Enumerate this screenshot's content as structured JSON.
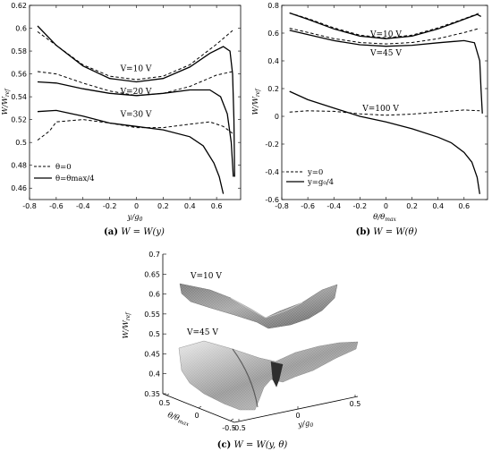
{
  "chart_data": [
    {
      "id": "a",
      "type": "line",
      "caption_letter": "(a)",
      "caption_text": "W = W(y)",
      "xlabel": "y/g₀",
      "ylabel": "W/W_ref",
      "xlim": [
        -0.8,
        0.78
      ],
      "ylim": [
        0.45,
        0.62
      ],
      "xticks": [
        "-0.8",
        "-0.6",
        "-0.4",
        "-0.2",
        "0",
        "0.2",
        "0.4",
        "0.6"
      ],
      "xtick_values": [
        -0.8,
        -0.6,
        -0.4,
        -0.2,
        0,
        0.2,
        0.4,
        0.6
      ],
      "yticks": [
        "0.46",
        "0.48",
        "0.5",
        "0.52",
        "0.54",
        "0.56",
        "0.58",
        "0.6",
        "0.62"
      ],
      "ytick_values": [
        0.46,
        0.48,
        0.5,
        0.52,
        0.54,
        0.56,
        0.58,
        0.6,
        0.62
      ],
      "legend": {
        "placement": "bottom-left",
        "entries": [
          {
            "label": "θ=0",
            "style": "dashed"
          },
          {
            "label": "θ=θmax/4",
            "style": "solid"
          }
        ]
      },
      "annotations": [
        {
          "text": "V=10 V",
          "x": -0.12,
          "y": 0.5625
        },
        {
          "text": "V=20 V",
          "x": -0.12,
          "y": 0.5425
        },
        {
          "text": "V=30 V",
          "x": -0.12,
          "y": 0.5225
        }
      ],
      "series": [
        {
          "style": "dashed",
          "x": [
            -0.74,
            -0.6,
            -0.4,
            -0.2,
            0,
            0.2,
            0.4,
            0.6,
            0.72
          ],
          "y": [
            0.597,
            0.585,
            0.568,
            0.558,
            0.555,
            0.558,
            0.568,
            0.586,
            0.598
          ]
        },
        {
          "style": "solid",
          "x": [
            -0.74,
            -0.6,
            -0.4,
            -0.2,
            0,
            0.2,
            0.4,
            0.55,
            0.65,
            0.7,
            0.72,
            0.73,
            0.735
          ],
          "y": [
            0.602,
            0.585,
            0.567,
            0.556,
            0.553,
            0.556,
            0.566,
            0.578,
            0.584,
            0.58,
            0.56,
            0.52,
            0.47
          ]
        },
        {
          "style": "dashed",
          "x": [
            -0.74,
            -0.6,
            -0.4,
            -0.2,
            0,
            0.2,
            0.4,
            0.6,
            0.72
          ],
          "y": [
            0.562,
            0.56,
            0.552,
            0.545,
            0.541,
            0.543,
            0.549,
            0.559,
            0.562
          ]
        },
        {
          "style": "solid",
          "x": [
            -0.74,
            -0.6,
            -0.4,
            -0.2,
            0,
            0.2,
            0.4,
            0.55,
            0.63,
            0.68,
            0.71,
            0.725
          ],
          "y": [
            0.553,
            0.552,
            0.547,
            0.543,
            0.541,
            0.543,
            0.546,
            0.546,
            0.54,
            0.525,
            0.5,
            0.47
          ]
        },
        {
          "style": "dashed",
          "x": [
            -0.74,
            -0.65,
            -0.6,
            -0.4,
            -0.2,
            0,
            0.2,
            0.4,
            0.55,
            0.65,
            0.72
          ],
          "y": [
            0.502,
            0.51,
            0.518,
            0.52,
            0.517,
            0.513,
            0.513,
            0.516,
            0.518,
            0.514,
            0.508
          ]
        },
        {
          "style": "solid",
          "x": [
            -0.74,
            -0.6,
            -0.4,
            -0.2,
            0,
            0.2,
            0.4,
            0.5,
            0.58,
            0.62,
            0.65
          ],
          "y": [
            0.527,
            0.528,
            0.523,
            0.517,
            0.514,
            0.511,
            0.505,
            0.497,
            0.482,
            0.47,
            0.455
          ]
        }
      ]
    },
    {
      "id": "b",
      "type": "line",
      "caption_letter": "(b)",
      "caption_text": "W = W(θ)",
      "xlabel": "θ/θmax",
      "ylabel": "W/W_ref",
      "xlim": [
        -0.8,
        0.78
      ],
      "ylim": [
        -0.6,
        0.8
      ],
      "xticks": [
        "-0.8",
        "-0.6",
        "-0.4",
        "-0.2",
        "0",
        "0.2",
        "0.4",
        "0.6"
      ],
      "xtick_values": [
        -0.8,
        -0.6,
        -0.4,
        -0.2,
        0,
        0.2,
        0.4,
        0.6
      ],
      "yticks": [
        "-0.6",
        "-0.4",
        "-0.2",
        "0",
        "0.2",
        "0.4",
        "0.6",
        "0.8"
      ],
      "ytick_values": [
        -0.6,
        -0.4,
        -0.2,
        0,
        0.2,
        0.4,
        0.6,
        0.8
      ],
      "legend": {
        "placement": "bottom-left",
        "entries": [
          {
            "label": "y=0",
            "style": "dashed"
          },
          {
            "label": "y=g₀/4",
            "style": "solid"
          }
        ]
      },
      "annotations": [
        {
          "text": "V=10 V",
          "x": -0.12,
          "y": 0.575
        },
        {
          "text": "V=45 V",
          "x": -0.12,
          "y": 0.44
        },
        {
          "text": "V=100 V",
          "x": -0.18,
          "y": 0.04
        }
      ],
      "series": [
        {
          "style": "dashed",
          "x": [
            -0.74,
            -0.6,
            -0.4,
            -0.2,
            0,
            0.2,
            0.4,
            0.6,
            0.72
          ],
          "y": [
            0.745,
            0.705,
            0.638,
            0.585,
            0.565,
            0.585,
            0.638,
            0.703,
            0.745
          ]
        },
        {
          "style": "solid",
          "x": [
            -0.74,
            -0.6,
            -0.4,
            -0.2,
            0,
            0.2,
            0.4,
            0.6,
            0.7,
            0.73
          ],
          "y": [
            0.745,
            0.7,
            0.63,
            0.578,
            0.56,
            0.578,
            0.63,
            0.7,
            0.735,
            0.72
          ]
        },
        {
          "style": "dashed",
          "x": [
            -0.74,
            -0.6,
            -0.4,
            -0.2,
            0,
            0.2,
            0.4,
            0.6,
            0.72
          ],
          "y": [
            0.635,
            0.605,
            0.56,
            0.532,
            0.522,
            0.532,
            0.56,
            0.604,
            0.635
          ]
        },
        {
          "style": "solid",
          "x": [
            -0.74,
            -0.6,
            -0.4,
            -0.2,
            0,
            0.2,
            0.4,
            0.6,
            0.68,
            0.72,
            0.73,
            0.74
          ],
          "y": [
            0.62,
            0.59,
            0.546,
            0.516,
            0.505,
            0.512,
            0.53,
            0.546,
            0.53,
            0.4,
            0.2,
            0.02
          ]
        },
        {
          "style": "dashed",
          "x": [
            -0.74,
            -0.6,
            -0.4,
            -0.2,
            0,
            0.2,
            0.4,
            0.6,
            0.72
          ],
          "y": [
            0.03,
            0.04,
            0.036,
            0.018,
            0.008,
            0.016,
            0.03,
            0.046,
            0.04
          ]
        },
        {
          "style": "solid",
          "x": [
            -0.74,
            -0.6,
            -0.4,
            -0.2,
            0,
            0.2,
            0.4,
            0.5,
            0.6,
            0.66,
            0.7,
            0.72
          ],
          "y": [
            0.18,
            0.12,
            0.06,
            0.0,
            -0.04,
            -0.09,
            -0.15,
            -0.19,
            -0.26,
            -0.33,
            -0.44,
            -0.56
          ]
        }
      ]
    },
    {
      "id": "c",
      "type": "surface",
      "caption_letter": "(c)",
      "caption_text": "W = W(y, θ)",
      "xlabel": "y/g₀",
      "ylabel": "θ/θmax",
      "zlabel": "W/W_ref",
      "zlim": [
        0.35,
        0.7
      ],
      "zticks": [
        "0.35",
        "0.4",
        "0.45",
        "0.5",
        "0.55",
        "0.6",
        "0.65",
        "0.7"
      ],
      "xticks": [
        "-0.5",
        "0",
        "0.5"
      ],
      "yticks": [
        "-0.5",
        "0",
        "0.5"
      ],
      "annotations": [
        {
          "text": "V=10 V"
        },
        {
          "text": "V=45 V"
        }
      ]
    }
  ]
}
